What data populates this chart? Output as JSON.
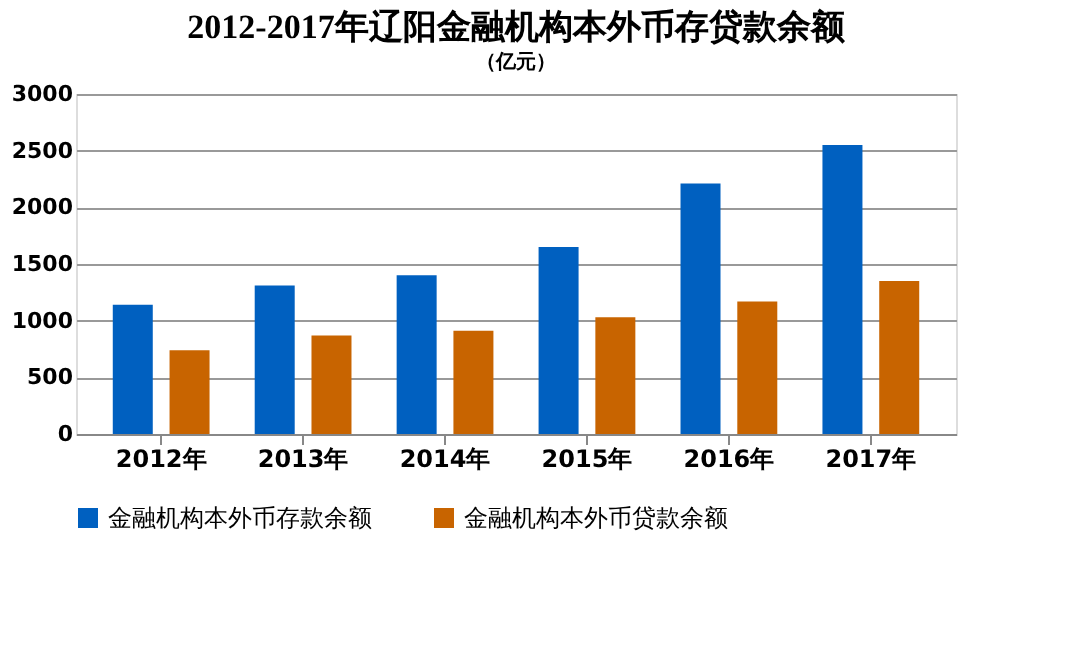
{
  "chart_data": {
    "type": "bar",
    "title": "2012-2017年辽阳金融机构本外币存贷款余额",
    "ylabel": "（亿元）",
    "categories": [
      "2012年",
      "2013年",
      "2014年",
      "2015年",
      "2016年",
      "2017年"
    ],
    "series": [
      {
        "name": "金融机构本外币存款余额",
        "color": "#0060c0",
        "values": [
          1140,
          1310,
          1400,
          1650,
          2210,
          2550
        ]
      },
      {
        "name": "金融机构本外币贷款余额",
        "color": "#c86400",
        "values": [
          740,
          870,
          910,
          1030,
          1170,
          1350
        ]
      }
    ],
    "ylim": [
      0,
      3000
    ],
    "yticks": [
      0,
      500,
      1000,
      1500,
      2000,
      2500,
      3000
    ],
    "grid": "y",
    "legend": "bottom"
  }
}
